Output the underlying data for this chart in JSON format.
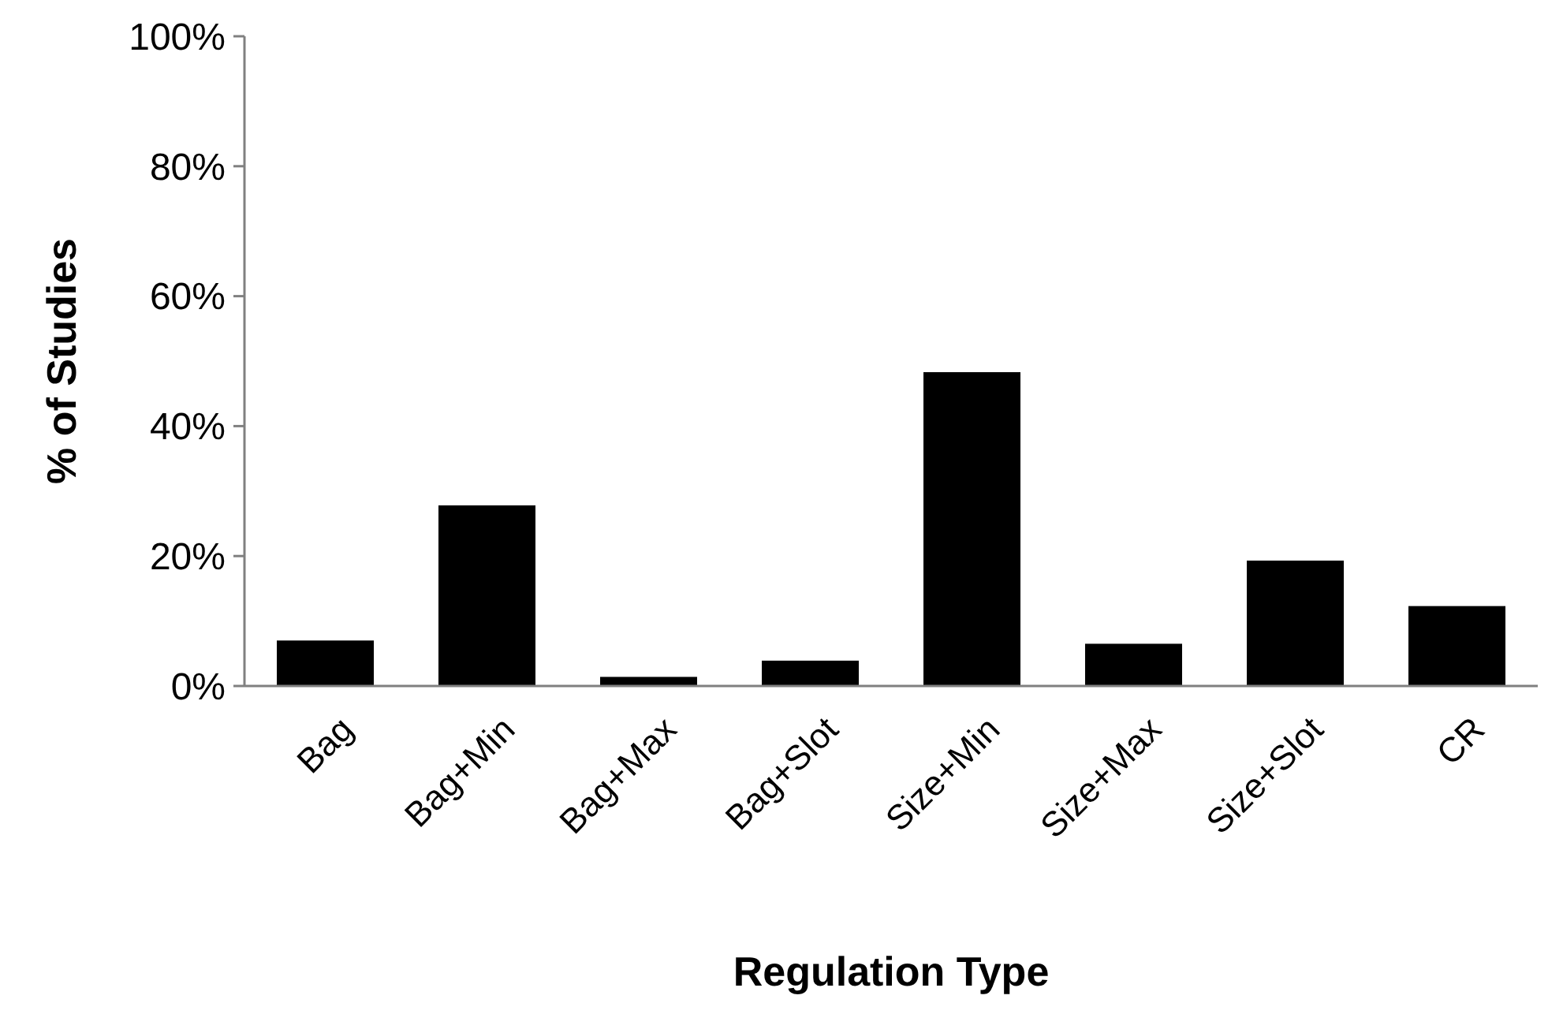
{
  "chart_data": {
    "type": "bar",
    "xlabel": "Regulation Type",
    "ylabel": "% of Studies",
    "categories": [
      "Bag",
      "Bag+Min",
      "Bag+Max",
      "Bag+Slot",
      "Size+Min",
      "Size+Max",
      "Size+Slot",
      "CR"
    ],
    "values": [
      7,
      27.8,
      1.4,
      3.9,
      48.3,
      6.5,
      19.3,
      12.3
    ],
    "color": "#000000",
    "ylim": [
      0,
      100
    ],
    "yticks": [
      {
        "value": 0,
        "label": "0%"
      },
      {
        "value": 20,
        "label": "20%"
      },
      {
        "value": 40,
        "label": "40%"
      },
      {
        "value": 60,
        "label": "60%"
      },
      {
        "value": 80,
        "label": "80%"
      },
      {
        "value": 100,
        "label": "100%"
      }
    ],
    "grid": false
  }
}
